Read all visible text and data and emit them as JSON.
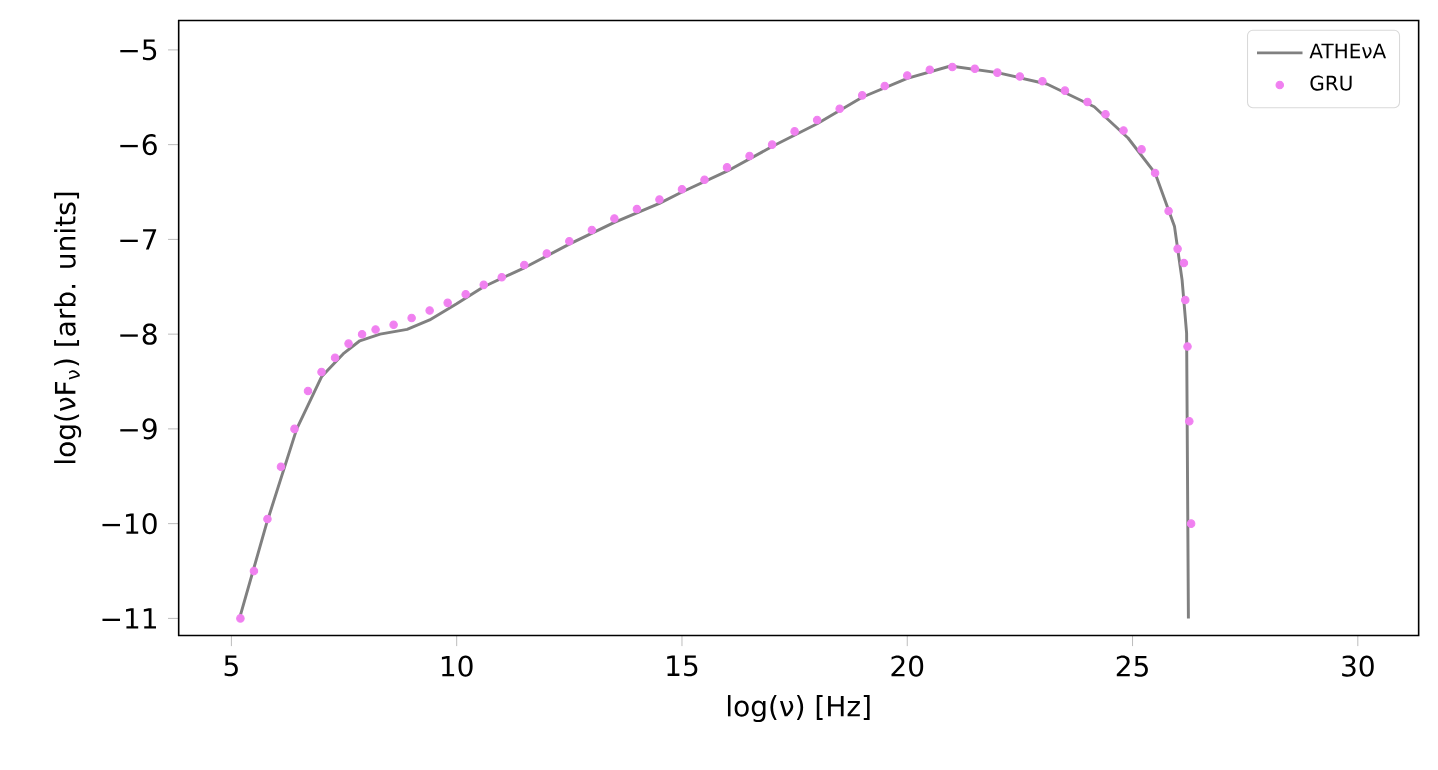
{
  "chart_data": {
    "type": "line",
    "xlabel": "log(ν) [Hz]",
    "ylabel": "log(νF$_{ν}$) [arb. units]",
    "xlim": [
      3.83,
      31.35
    ],
    "ylim": [
      -11.18,
      -4.69
    ],
    "xticks": [
      5,
      10,
      15,
      20,
      25,
      30
    ],
    "yticks": [
      {
        "value": -11,
        "label": "−11"
      },
      {
        "value": -10,
        "label": "−10"
      },
      {
        "value": -9,
        "label": "−9"
      },
      {
        "value": -8,
        "label": "−8"
      },
      {
        "value": -7,
        "label": "−7"
      },
      {
        "value": -6,
        "label": "−6"
      },
      {
        "value": -5,
        "label": "−5"
      }
    ],
    "legend": "top right",
    "grid": false,
    "series": [
      {
        "name": "ATHEνA",
        "color": "#808080",
        "marker": "none",
        "line_style": "solid",
        "x": [
          5.18,
          5.78,
          6.45,
          7.0,
          7.5,
          7.85,
          8.3,
          8.9,
          9.4,
          10.0,
          10.6,
          11.5,
          12.5,
          13.5,
          14.5,
          15.0,
          16.0,
          17.0,
          18.0,
          19.0,
          20.0,
          20.96,
          22.0,
          23.1,
          24.15,
          24.9,
          25.5,
          25.93,
          26.1,
          26.2,
          26.24
        ],
        "values": [
          -11.0,
          -10.0,
          -9.0,
          -8.45,
          -8.2,
          -8.07,
          -8.0,
          -7.95,
          -7.85,
          -7.68,
          -7.5,
          -7.3,
          -7.05,
          -6.82,
          -6.62,
          -6.5,
          -6.28,
          -6.02,
          -5.78,
          -5.5,
          -5.3,
          -5.17,
          -5.24,
          -5.36,
          -5.6,
          -5.93,
          -6.3,
          -6.86,
          -7.43,
          -7.99,
          -11.0
        ]
      },
      {
        "name": "GRU",
        "type": "scatter",
        "color": "#f080f0",
        "marker": "circle",
        "x": [
          5.2,
          5.5,
          5.8,
          6.1,
          6.4,
          6.7,
          7.0,
          7.3,
          7.6,
          7.9,
          8.2,
          8.6,
          9.0,
          9.4,
          9.8,
          10.2,
          10.6,
          11.0,
          11.5,
          12.0,
          12.5,
          13.0,
          13.5,
          14.0,
          14.5,
          15.0,
          15.5,
          16.0,
          16.5,
          17.0,
          17.5,
          18.0,
          18.5,
          19.0,
          19.5,
          20.0,
          20.5,
          21.0,
          21.5,
          22.0,
          22.5,
          23.0,
          23.5,
          24.0,
          24.4,
          24.8,
          25.2,
          25.5,
          25.8,
          26.0,
          26.14,
          26.17,
          26.22,
          26.26,
          26.3
        ],
        "values": [
          -11.0,
          -10.5,
          -9.95,
          -9.4,
          -9.0,
          -8.6,
          -8.4,
          -8.25,
          -8.1,
          -8.0,
          -7.95,
          -7.9,
          -7.83,
          -7.75,
          -7.67,
          -7.58,
          -7.48,
          -7.4,
          -7.27,
          -7.15,
          -7.02,
          -6.9,
          -6.78,
          -6.68,
          -6.58,
          -6.47,
          -6.37,
          -6.24,
          -6.12,
          -6.0,
          -5.86,
          -5.74,
          -5.62,
          -5.48,
          -5.38,
          -5.27,
          -5.21,
          -5.18,
          -5.2,
          -5.24,
          -5.28,
          -5.33,
          -5.43,
          -5.55,
          -5.68,
          -5.85,
          -6.05,
          -6.3,
          -6.7,
          -7.1,
          -7.25,
          -7.64,
          -8.13,
          -8.92,
          -10.0
        ]
      }
    ]
  }
}
